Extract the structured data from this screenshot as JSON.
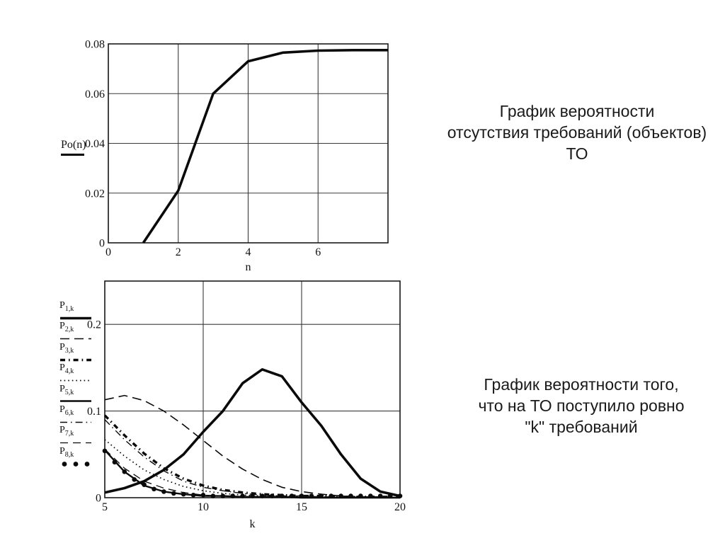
{
  "page": {
    "background": "#ffffff",
    "ink_color": "#0a0a0a",
    "grid_color": "#3a3a3a"
  },
  "captions": {
    "top": {
      "lines": [
        "График вероятности",
        "отсутствия требований (объектов)",
        "ТО"
      ]
    },
    "bottom": {
      "lines": [
        "График вероятности того,",
        "что на ТО поступило ровно",
        "\"k\" требований"
      ]
    }
  },
  "chart_data": [
    {
      "type": "line",
      "title": "",
      "xlabel": "n",
      "ylabel": "Po(n)",
      "xlim": [
        0,
        8
      ],
      "ylim": [
        0,
        0.08
      ],
      "xticks": [
        0,
        2,
        4,
        6
      ],
      "yticks": [
        0,
        0.02,
        0.04,
        0.06,
        0.08
      ],
      "grid": true,
      "legend_position": "left",
      "series": [
        {
          "name": "Po(n)",
          "style": "solid-thick",
          "x": [
            1,
            2,
            3,
            4,
            5,
            6,
            7,
            8
          ],
          "values": [
            0,
            0.021,
            0.06,
            0.073,
            0.0765,
            0.0773,
            0.0775,
            0.0775
          ]
        }
      ]
    },
    {
      "type": "line",
      "title": "",
      "xlabel": "k",
      "ylabel": "",
      "xlim": [
        5,
        20
      ],
      "ylim": [
        0,
        0.25
      ],
      "xticks": [
        5,
        10,
        15,
        20
      ],
      "yticks": [
        0,
        0.1,
        0.2
      ],
      "grid": true,
      "legend_position": "left",
      "series": [
        {
          "name": "P1,k",
          "base": "P",
          "sub": "1,k",
          "style": "solid-thick",
          "x": [
            5,
            6,
            7,
            8,
            9,
            10,
            11,
            12,
            13,
            14,
            15,
            16,
            17,
            18,
            19,
            20
          ],
          "values": [
            0.006,
            0.011,
            0.019,
            0.032,
            0.05,
            0.076,
            0.1,
            0.132,
            0.148,
            0.14,
            0.11,
            0.083,
            0.05,
            0.022,
            0.007,
            0.002
          ]
        },
        {
          "name": "P2,k",
          "base": "P",
          "sub": "2,k",
          "style": "dash",
          "x": [
            5,
            6,
            7,
            8,
            9,
            10,
            11,
            12,
            13,
            14,
            15,
            16,
            17,
            18,
            19,
            20
          ],
          "values": [
            0.113,
            0.118,
            0.112,
            0.1,
            0.084,
            0.066,
            0.048,
            0.033,
            0.021,
            0.012,
            0.007,
            0.004,
            0.002,
            0.001,
            0.001,
            0
          ]
        },
        {
          "name": "P3,k",
          "base": "P",
          "sub": "3,k",
          "style": "dashdot-thick",
          "x": [
            5,
            6,
            7,
            8,
            9,
            10,
            11,
            12,
            13,
            14,
            15,
            16,
            17,
            18,
            19,
            20
          ],
          "values": [
            0.095,
            0.072,
            0.051,
            0.034,
            0.022,
            0.014,
            0.009,
            0.006,
            0.004,
            0.003,
            0.002,
            0.002,
            0.001,
            0.001,
            0.001,
            0.001
          ]
        },
        {
          "name": "P4,k",
          "base": "P",
          "sub": "4,k",
          "style": "dotted",
          "x": [
            5,
            6,
            7,
            8,
            9,
            10,
            11,
            12,
            13,
            14,
            15,
            16,
            17,
            18,
            19,
            20
          ],
          "values": [
            0.067,
            0.048,
            0.032,
            0.021,
            0.013,
            0.008,
            0.005,
            0.003,
            0.002,
            0.002,
            0.001,
            0.001,
            0.001,
            0.001,
            0,
            0
          ]
        },
        {
          "name": "P5,k",
          "base": "P",
          "sub": "5,k",
          "style": "solid",
          "x": [
            5,
            6,
            7,
            8,
            9,
            10,
            11,
            12,
            13,
            14,
            15,
            16,
            17,
            18,
            19,
            20
          ],
          "values": [
            0.055,
            0.03,
            0.014,
            0.007,
            0.004,
            0.002,
            0.002,
            0.001,
            0.001,
            0.001,
            0,
            0,
            0,
            0,
            0,
            0
          ]
        },
        {
          "name": "P6,k",
          "base": "P",
          "sub": "6,k",
          "style": "dashdot",
          "x": [
            5,
            6,
            7,
            8,
            9,
            10,
            11,
            12,
            13,
            14,
            15,
            16,
            17,
            18,
            19,
            20
          ],
          "values": [
            0.09,
            0.067,
            0.047,
            0.031,
            0.019,
            0.012,
            0.008,
            0.005,
            0.003,
            0.002,
            0.002,
            0.001,
            0.001,
            0.001,
            0,
            0
          ]
        },
        {
          "name": "P7,k",
          "base": "P",
          "sub": "7,k",
          "style": "dash-thin",
          "x": [
            5,
            6,
            7,
            8,
            9,
            10,
            11,
            12,
            13,
            14,
            15,
            16,
            17,
            18,
            19,
            20
          ],
          "values": [
            0.056,
            0.034,
            0.019,
            0.011,
            0.006,
            0.003,
            0.002,
            0.001,
            0.001,
            0,
            0,
            0,
            0,
            0,
            0,
            0
          ]
        },
        {
          "name": "P8,k",
          "base": "P",
          "sub": "8,k",
          "style": "dots",
          "x": [
            5,
            5.5,
            6,
            6.5,
            7,
            7.5,
            8,
            8.5,
            9,
            9.5,
            10,
            10.5,
            11,
            11.5,
            12,
            12.5,
            13,
            13.5,
            14,
            14.5,
            15,
            15.5,
            16,
            16.5,
            17,
            17.5,
            18,
            18.5,
            19,
            19.5,
            20
          ],
          "values": [
            0.054,
            0.041,
            0.03,
            0.021,
            0.015,
            0.01,
            0.007,
            0.005,
            0.004,
            0.003,
            0.003,
            0.002,
            0.002,
            0.002,
            0.002,
            0.002,
            0.002,
            0.002,
            0.002,
            0.002,
            0.002,
            0.002,
            0.002,
            0.002,
            0.002,
            0.002,
            0.002,
            0.002,
            0.002,
            0.002,
            0.002
          ]
        }
      ]
    }
  ]
}
